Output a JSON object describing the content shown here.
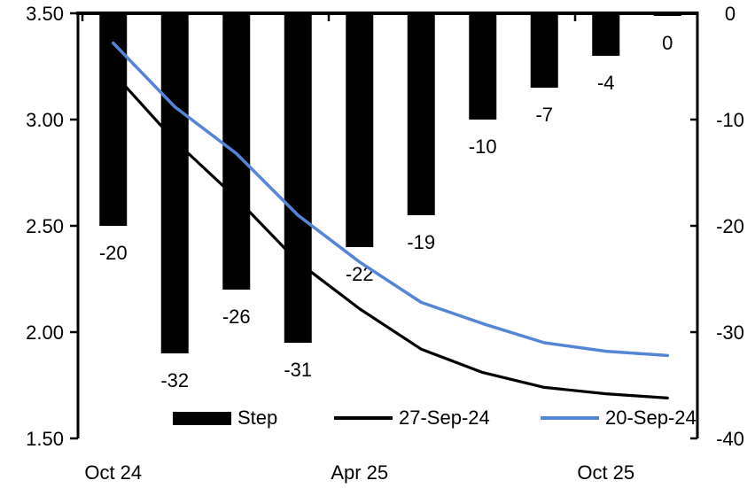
{
  "chart_data": {
    "type": "combo-bar-line",
    "n_categories": 10,
    "background": "#ffffff",
    "colors": {
      "bar": "#000000",
      "line_27sep": "#000000",
      "line_20sep": "#5585D6",
      "axis": "#000000"
    },
    "x_axis": {
      "tick_labels": [
        {
          "label": "Oct 24",
          "category_index": 0
        },
        {
          "label": "Apr 25",
          "category_index": 4
        },
        {
          "label": "Oct 25",
          "category_index": 8
        }
      ],
      "boundary_tick_indices": [
        0,
        4,
        8
      ]
    },
    "left_axis": {
      "min": 1.5,
      "max": 3.5,
      "tick_labels": [
        "3.50",
        "3.00",
        "2.50",
        "2.00",
        "1.50"
      ]
    },
    "right_axis": {
      "min": -40,
      "max": 0,
      "tick_labels": [
        "0",
        "-10",
        "-20",
        "-30",
        "-40"
      ]
    },
    "bar_series": {
      "name": "Step",
      "axis": "right",
      "values": [
        -20,
        -32,
        -26,
        -31,
        -22,
        -19,
        -10,
        -7,
        -4,
        0
      ],
      "data_labels": [
        "-20",
        "-32",
        "-26",
        "-31",
        "-22",
        "-19",
        "-10",
        "-7",
        "-4",
        "0"
      ]
    },
    "line_series": [
      {
        "name": "27-Sep-24",
        "axis": "left",
        "values": [
          3.22,
          2.9,
          2.63,
          2.33,
          2.11,
          1.92,
          1.81,
          1.74,
          1.71,
          1.69
        ]
      },
      {
        "name": "20-Sep-24",
        "axis": "left",
        "values": [
          3.36,
          3.06,
          2.84,
          2.55,
          2.33,
          2.14,
          2.04,
          1.95,
          1.91,
          1.89
        ]
      }
    ],
    "legend": {
      "position": "bottom",
      "items": [
        {
          "label": "Step",
          "swatch": "box",
          "color": "#000000"
        },
        {
          "label": "27-Sep-24",
          "swatch": "line",
          "color": "#000000"
        },
        {
          "label": "20-Sep-24",
          "swatch": "line",
          "color": "#5585D6"
        }
      ]
    }
  }
}
